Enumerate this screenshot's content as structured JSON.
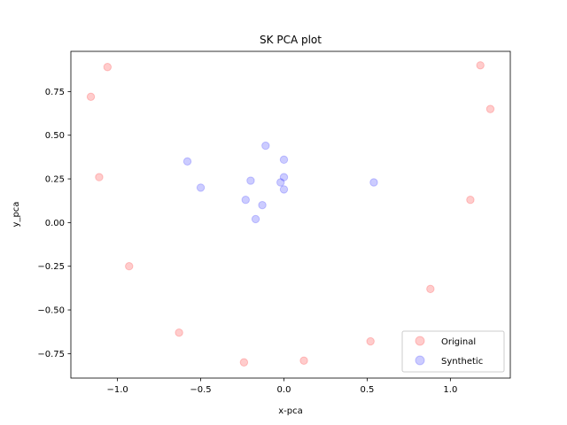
{
  "chart_data": {
    "type": "scatter",
    "title": "SK PCA plot",
    "xlabel": "x-pca",
    "ylabel": "y_pca",
    "xlim": [
      -1.28,
      1.36
    ],
    "ylim": [
      -0.89,
      0.98
    ],
    "xticks": [
      -1.0,
      -0.5,
      0.0,
      0.5,
      1.0
    ],
    "xtick_labels": [
      "−1.0",
      "−0.5",
      "0.0",
      "0.5",
      "1.0"
    ],
    "yticks": [
      -0.75,
      -0.5,
      -0.25,
      0.0,
      0.25,
      0.5,
      0.75
    ],
    "ytick_labels": [
      "−0.75",
      "−0.50",
      "−0.25",
      "0.00",
      "0.25",
      "0.50",
      "0.75"
    ],
    "grid": false,
    "legend_position": "lower right",
    "series": [
      {
        "name": "Original",
        "color": "#ff0000",
        "alpha": 0.2,
        "points": [
          {
            "x": -1.06,
            "y": 0.89
          },
          {
            "x": -1.16,
            "y": 0.72
          },
          {
            "x": -1.11,
            "y": 0.26
          },
          {
            "x": -0.93,
            "y": -0.25
          },
          {
            "x": -0.63,
            "y": -0.63
          },
          {
            "x": -0.24,
            "y": -0.8
          },
          {
            "x": 0.12,
            "y": -0.79
          },
          {
            "x": 0.52,
            "y": -0.68
          },
          {
            "x": 0.88,
            "y": -0.38
          },
          {
            "x": 1.12,
            "y": 0.13
          },
          {
            "x": 1.18,
            "y": 0.9
          },
          {
            "x": 1.24,
            "y": 0.65
          }
        ]
      },
      {
        "name": "Synthetic",
        "color": "#0000ff",
        "alpha": 0.2,
        "points": [
          {
            "x": -0.58,
            "y": 0.35
          },
          {
            "x": -0.5,
            "y": 0.2
          },
          {
            "x": -0.23,
            "y": 0.13
          },
          {
            "x": -0.2,
            "y": 0.24
          },
          {
            "x": -0.17,
            "y": 0.02
          },
          {
            "x": -0.13,
            "y": 0.1
          },
          {
            "x": -0.11,
            "y": 0.44
          },
          {
            "x": -0.02,
            "y": 0.23
          },
          {
            "x": 0.0,
            "y": 0.36
          },
          {
            "x": 0.0,
            "y": 0.26
          },
          {
            "x": 0.0,
            "y": 0.19
          },
          {
            "x": 0.54,
            "y": 0.23
          }
        ]
      }
    ]
  }
}
